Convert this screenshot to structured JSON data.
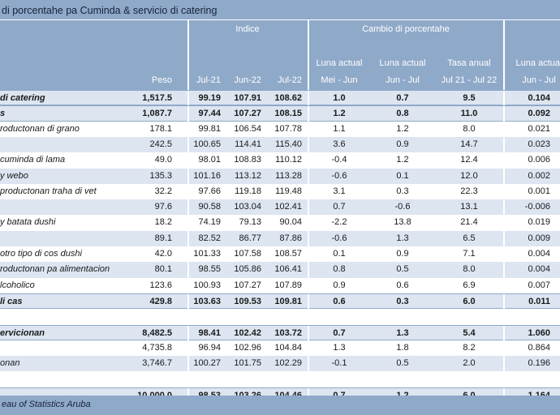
{
  "title": "di porcentahe pa Cuminda & servicio di catering",
  "header": {
    "indice": "Indice",
    "cambio": "Cambio di porcentahe",
    "peso": "Peso",
    "periods": [
      "Jul-21",
      "Jun-22",
      "Jul-22"
    ],
    "chg_top": [
      "Luna actual",
      "Luna actual",
      "Tasa anual",
      "Luna actual"
    ],
    "chg_bot": [
      "Mei - Jun",
      "Jun - Jul",
      "Jul 21 - Jul 22",
      "Jun - Jul"
    ]
  },
  "rows": [
    {
      "name": "di catering",
      "peso": "1,517.5",
      "i1": "99.19",
      "i2": "107.91",
      "i3": "108.62",
      "c1": "1.0",
      "c2": "0.7",
      "c3": "9.5",
      "c4": "0.104",
      "style": "hilite bold"
    },
    {
      "name": "s",
      "peso": "1,087.7",
      "i1": "97.44",
      "i2": "107.27",
      "i3": "108.15",
      "c1": "1.2",
      "c2": "0.8",
      "c3": "11.0",
      "c4": "0.092",
      "style": "hilite bold"
    },
    {
      "name": "roductonan di grano",
      "peso": "178.1",
      "i1": "99.81",
      "i2": "106.54",
      "i3": "107.78",
      "c1": "1.1",
      "c2": "1.2",
      "c3": "8.0",
      "c4": "0.021",
      "style": ""
    },
    {
      "name": "",
      "peso": "242.5",
      "i1": "100.65",
      "i2": "114.41",
      "i3": "115.40",
      "c1": "3.6",
      "c2": "0.9",
      "c3": "14.7",
      "c4": "0.023",
      "style": "alt"
    },
    {
      "name": "cuminda di lama",
      "peso": "49.0",
      "i1": "98.01",
      "i2": "108.83",
      "i3": "110.12",
      "c1": "-0.4",
      "c2": "1.2",
      "c3": "12.4",
      "c4": "0.006",
      "style": ""
    },
    {
      "name": "y webo",
      "peso": "135.3",
      "i1": "101.16",
      "i2": "113.12",
      "i3": "113.28",
      "c1": "-0.6",
      "c2": "0.1",
      "c3": "12.0",
      "c4": "0.002",
      "style": "alt"
    },
    {
      "name": "productonan traha di vet",
      "peso": "32.2",
      "i1": "97.66",
      "i2": "119.18",
      "i3": "119.48",
      "c1": "3.1",
      "c2": "0.3",
      "c3": "22.3",
      "c4": "0.001",
      "style": ""
    },
    {
      "name": "",
      "peso": "97.6",
      "i1": "90.58",
      "i2": "103.04",
      "i3": "102.41",
      "c1": "0.7",
      "c2": "-0.6",
      "c3": "13.1",
      "c4": "-0.006",
      "style": "alt"
    },
    {
      "name": "y batata dushi",
      "peso": "18.2",
      "i1": "74.19",
      "i2": "79.13",
      "i3": "90.04",
      "c1": "-2.2",
      "c2": "13.8",
      "c3": "21.4",
      "c4": "0.019",
      "style": ""
    },
    {
      "name": "",
      "peso": "89.1",
      "i1": "82.52",
      "i2": "86.77",
      "i3": "87.86",
      "c1": "-0.6",
      "c2": "1.3",
      "c3": "6.5",
      "c4": "0.009",
      "style": "alt"
    },
    {
      "name": "otro tipo di cos dushi",
      "peso": "42.0",
      "i1": "101.33",
      "i2": "107.58",
      "i3": "108.57",
      "c1": "0.1",
      "c2": "0.9",
      "c3": "7.1",
      "c4": "0.004",
      "style": ""
    },
    {
      "name": "roductonan pa alimentacion",
      "peso": "80.1",
      "i1": "98.55",
      "i2": "105.86",
      "i3": "106.41",
      "c1": "0.8",
      "c2": "0.5",
      "c3": "8.0",
      "c4": "0.004",
      "style": "alt"
    },
    {
      "name": "lcoholico",
      "peso": "123.6",
      "i1": "100.93",
      "i2": "107.27",
      "i3": "107.89",
      "c1": "0.9",
      "c2": "0.6",
      "c3": "6.9",
      "c4": "0.007",
      "style": ""
    },
    {
      "name": "li cas",
      "peso": "429.8",
      "i1": "103.63",
      "i2": "109.53",
      "i3": "109.81",
      "c1": "0.6",
      "c2": "0.3",
      "c3": "6.0",
      "c4": "0.011",
      "style": "hilite bold"
    },
    {
      "name": "",
      "peso": "",
      "i1": "",
      "i2": "",
      "i3": "",
      "c1": "",
      "c2": "",
      "c3": "",
      "c4": "",
      "style": "blank"
    },
    {
      "name": "ervicionan",
      "peso": "8,482.5",
      "i1": "98.41",
      "i2": "102.42",
      "i3": "103.72",
      "c1": "0.7",
      "c2": "1.3",
      "c3": "5.4",
      "c4": "1.060",
      "style": "hilite bold"
    },
    {
      "name": "",
      "peso": "4,735.8",
      "i1": "96.94",
      "i2": "102.96",
      "i3": "104.84",
      "c1": "1.3",
      "c2": "1.8",
      "c3": "8.2",
      "c4": "0.864",
      "style": ""
    },
    {
      "name": "onan",
      "peso": "3,746.7",
      "i1": "100.27",
      "i2": "101.75",
      "i3": "102.29",
      "c1": "-0.1",
      "c2": "0.5",
      "c3": "2.0",
      "c4": "0.196",
      "style": "alt"
    },
    {
      "name": "",
      "peso": "",
      "i1": "",
      "i2": "",
      "i3": "",
      "c1": "",
      "c2": "",
      "c3": "",
      "c4": "",
      "style": "blank"
    },
    {
      "name": "",
      "peso": "10,000.0",
      "i1": "98.53",
      "i2": "103.26",
      "i3": "104.46",
      "c1": "0.7",
      "c2": "1.2",
      "c3": "6.0",
      "c4": "1.164",
      "style": "hilite bold"
    }
  ],
  "footer": {
    "source": "eau of Statistics Aruba"
  }
}
